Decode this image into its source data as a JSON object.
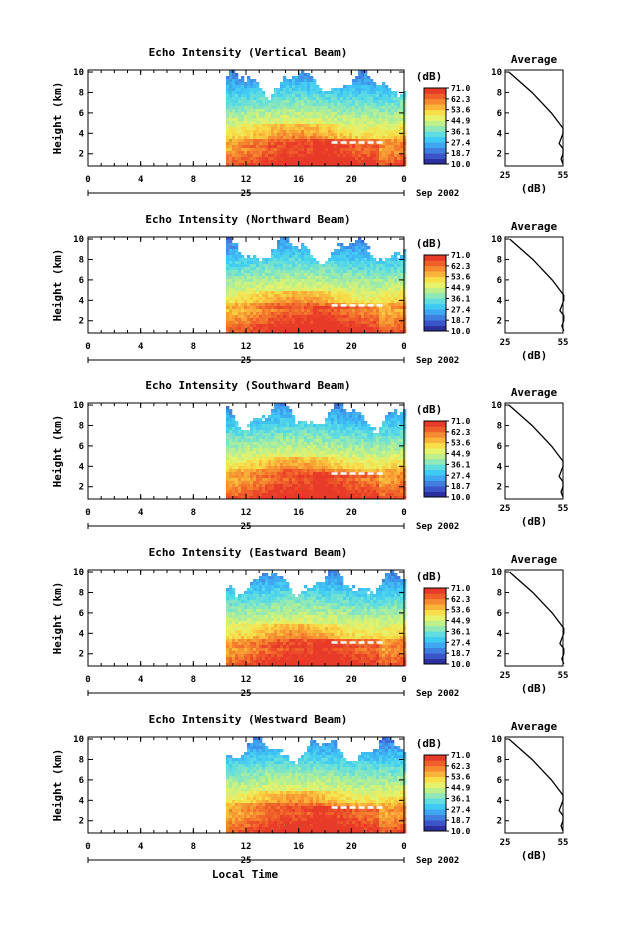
{
  "panels": [
    {
      "title": "Echo Intensity (Vertical Beam)",
      "layer_height_km": 3.1
    },
    {
      "title": "Echo Intensity (Northward Beam)",
      "layer_height_km": 3.5
    },
    {
      "title": "Echo Intensity (Southward Beam)",
      "layer_height_km": 3.3
    },
    {
      "title": "Echo Intensity (Eastward Beam)",
      "layer_height_km": 3.1
    },
    {
      "title": "Echo Intensity (Westward Beam)",
      "layer_height_km": 3.3
    }
  ],
  "ylabel": "Height (km)",
  "xlabel": "Local Time",
  "day_label": "25",
  "date_label": "Sep 2002",
  "colorbar": {
    "unit": "(dB)",
    "ticks": [
      "71.0",
      "62.3",
      "53.6",
      "44.9",
      "36.1",
      "27.4",
      "18.7",
      "10.0"
    ],
    "colors": [
      "#2c2fa0",
      "#3a55c8",
      "#3f7fe0",
      "#3fa7f2",
      "#3fc9f5",
      "#5fdde0",
      "#8fe8b8",
      "#bdf08a",
      "#e6f26a",
      "#f8de48",
      "#fab43a",
      "#f58a30",
      "#ef5f2a",
      "#e83a28"
    ]
  },
  "average": {
    "title": "Average",
    "xlabel": "(dB)",
    "xticks": [
      "25",
      "55"
    ],
    "yticks": [
      "2",
      "4",
      "6",
      "8",
      "10"
    ]
  },
  "chart_data": {
    "type": "heatmap",
    "x_ticks": [
      "0",
      "4",
      "8",
      "12",
      "16",
      "20",
      "0"
    ],
    "y_ticks": [
      "2",
      "4",
      "6",
      "8",
      "10"
    ],
    "xlim_hours": [
      0,
      24
    ],
    "ylim_km": [
      0.8,
      10.2
    ],
    "data_start_hour": 10.5,
    "clim_db": [
      10.0,
      71.0
    ],
    "average_profile": {
      "height_km": [
        10,
        9,
        8,
        7,
        6,
        5,
        4.5,
        4,
        3.5,
        3,
        2.5,
        2,
        1.5,
        1
      ],
      "db": [
        27,
        33,
        39,
        44,
        49,
        53,
        55,
        55,
        54,
        53,
        55,
        55,
        54,
        55
      ]
    }
  }
}
